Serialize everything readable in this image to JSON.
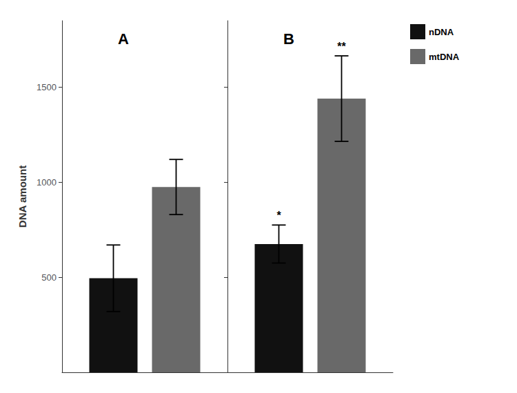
{
  "chart_data": [
    {
      "type": "bar",
      "title": "A",
      "categories": [
        null
      ],
      "series": [
        {
          "name": "nDNA",
          "color": "#111111",
          "values": [
            495
          ],
          "errors": [
            175
          ]
        },
        {
          "name": "mtDNA",
          "color": "#696969",
          "values": [
            975
          ],
          "errors": [
            145
          ]
        }
      ],
      "ylabel": "DNA amount",
      "ylim": [
        0,
        1850
      ],
      "yticks": [
        500,
        1000,
        1500
      ],
      "grid": false,
      "tick_labels": "y"
    },
    {
      "type": "bar",
      "title": "B",
      "categories": [
        null
      ],
      "series": [
        {
          "name": "nDNA",
          "color": "#111111",
          "values": [
            675
          ],
          "errors": [
            100
          ],
          "annotations": [
            "*"
          ]
        },
        {
          "name": "mtDNA",
          "color": "#696969",
          "values": [
            1440
          ],
          "errors": [
            225
          ],
          "annotations": [
            "**"
          ]
        }
      ],
      "ylim": [
        0,
        1850
      ],
      "yticks": [
        500,
        1000,
        1500
      ],
      "grid": false,
      "tick_labels": false,
      "legend": "upper right"
    }
  ]
}
